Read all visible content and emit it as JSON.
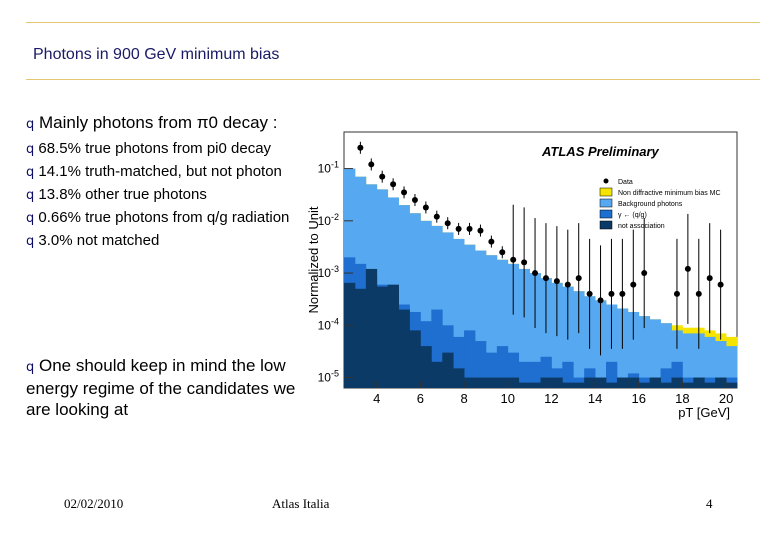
{
  "slide": {
    "title": "Photons in 900 GeV minimum bias",
    "bullet_mark": "q",
    "bullet1": {
      "text": "Mainly photons from π0 decay :",
      "subitems": [
        "68.5% true photons from pi0 decay",
        "14.1% truth-matched, but not photon",
        "13.8% other true photons",
        "0.66% true photons from q/g radiation",
        "3.0% not matched"
      ]
    },
    "bullet2": "One should keep in mind the low energy regime of the candidates we are looking at",
    "footer_date": "02/02/2010",
    "footer_center": "Atlas Italia",
    "footer_page": "4"
  },
  "chart_data": {
    "type": "area",
    "title": "ATLAS Preliminary",
    "ylabel": "Normalized to Unit",
    "xlabel": "pT [GeV]",
    "x_ticks": [
      4,
      6,
      8,
      10,
      12,
      14,
      16,
      18,
      20
    ],
    "y_ticks": [
      "10-1",
      "10-2",
      "10-3",
      "10-4",
      "10-5"
    ],
    "xlim": [
      2.5,
      20.5
    ],
    "ylim_log10": [
      -5.2,
      -0.3
    ],
    "y_scale": "log",
    "legend_position": "right",
    "legend": [
      "Data",
      "Non diffractive minimum bias MC",
      "Background photons",
      "γ ← (q/g)",
      "not association"
    ],
    "bin_edges": [
      2.5,
      3,
      3.5,
      4,
      4.5,
      5,
      5.5,
      6,
      6.5,
      7,
      7.5,
      8,
      8.5,
      9,
      9.5,
      10,
      10.5,
      11,
      11.5,
      12,
      12.5,
      13,
      13.5,
      14,
      14.5,
      15,
      15.5,
      16,
      16.5,
      17,
      17.5,
      18,
      18.5,
      19,
      19.5,
      20,
      20.5
    ],
    "series": [
      {
        "name": "Non diffractive minimum bias MC",
        "color": "#f5e400",
        "values": [
          0.1,
          0.07,
          0.05,
          0.04,
          0.028,
          0.02,
          0.014,
          0.01,
          0.008,
          0.006,
          0.0045,
          0.0035,
          0.0027,
          0.0022,
          0.0018,
          0.0015,
          0.0012,
          0.001,
          0.0008,
          0.00065,
          0.00055,
          0.00045,
          0.00036,
          0.0003,
          0.00025,
          0.00021,
          0.00018,
          0.00015,
          0.00013,
          0.00011,
          0.0001,
          9e-05,
          9e-05,
          8e-05,
          7e-05,
          6e-05
        ]
      },
      {
        "name": "Background photons",
        "color": "#56a9f0",
        "values": [
          0.1,
          0.07,
          0.05,
          0.04,
          0.028,
          0.02,
          0.014,
          0.01,
          0.008,
          0.006,
          0.0045,
          0.0035,
          0.0027,
          0.0022,
          0.0018,
          0.0015,
          0.0012,
          0.001,
          0.0008,
          0.00065,
          0.00055,
          0.00045,
          0.00036,
          0.0003,
          0.00025,
          0.00021,
          0.00018,
          0.00015,
          0.00013,
          0.00011,
          8e-05,
          7e-05,
          7e-05,
          6e-05,
          5e-05,
          4e-05
        ]
      },
      {
        "name": "γ ← (q/g)",
        "color": "#1f6fd0",
        "values": [
          0.002,
          0.0015,
          0.0009,
          0.0006,
          0.0004,
          0.00025,
          0.00018,
          0.00012,
          0.0002,
          0.0001,
          6e-05,
          8e-05,
          5e-05,
          3e-05,
          4e-05,
          3e-05,
          2e-05,
          2e-05,
          2.5e-05,
          1.5e-05,
          2e-05,
          1e-05,
          1.5e-05,
          1e-05,
          2e-05,
          1e-05,
          1.2e-05,
          1e-05,
          1e-05,
          1.5e-05,
          2e-05,
          1e-05,
          1e-05,
          1e-05,
          1e-05,
          1e-05
        ]
      },
      {
        "name": "not association",
        "color": "#0c3a66",
        "values": [
          0.00065,
          0.0005,
          0.0012,
          0.00055,
          0.0006,
          0.0002,
          8e-05,
          4e-05,
          2e-05,
          3e-05,
          1.5e-05,
          1e-05,
          1e-05,
          1e-05,
          1e-05,
          1e-05,
          8e-06,
          8e-06,
          1e-05,
          1e-05,
          8e-06,
          8e-06,
          1e-05,
          1e-05,
          8e-06,
          1e-05,
          1e-05,
          8e-06,
          1e-05,
          8e-06,
          1e-05,
          8e-06,
          1e-05,
          8e-06,
          1e-05,
          8e-06
        ]
      },
      {
        "name": "Data",
        "color": "#000000",
        "points": [
          {
            "x": 3.25,
            "y": 0.25
          },
          {
            "x": 3.75,
            "y": 0.12
          },
          {
            "x": 4.25,
            "y": 0.07
          },
          {
            "x": 4.75,
            "y": 0.05
          },
          {
            "x": 5.25,
            "y": 0.035
          },
          {
            "x": 5.75,
            "y": 0.025
          },
          {
            "x": 6.25,
            "y": 0.018
          },
          {
            "x": 6.75,
            "y": 0.012
          },
          {
            "x": 7.25,
            "y": 0.009
          },
          {
            "x": 7.75,
            "y": 0.007
          },
          {
            "x": 8.25,
            "y": 0.007
          },
          {
            "x": 8.75,
            "y": 0.0065
          },
          {
            "x": 9.25,
            "y": 0.004
          },
          {
            "x": 9.75,
            "y": 0.0025
          },
          {
            "x": 10.25,
            "y": 0.0018
          },
          {
            "x": 10.75,
            "y": 0.0016
          },
          {
            "x": 11.25,
            "y": 0.001
          },
          {
            "x": 11.75,
            "y": 0.0008
          },
          {
            "x": 12.25,
            "y": 0.0007
          },
          {
            "x": 12.75,
            "y": 0.0006
          },
          {
            "x": 13.25,
            "y": 0.0008
          },
          {
            "x": 13.75,
            "y": 0.0004
          },
          {
            "x": 14.25,
            "y": 0.0003
          },
          {
            "x": 14.75,
            "y": 0.0004
          },
          {
            "x": 15.25,
            "y": 0.0004
          },
          {
            "x": 15.75,
            "y": 0.0006
          },
          {
            "x": 16.25,
            "y": 0.001
          },
          {
            "x": 17.75,
            "y": 0.0004
          },
          {
            "x": 18.25,
            "y": 0.0012
          },
          {
            "x": 18.75,
            "y": 0.0004
          },
          {
            "x": 19.25,
            "y": 0.0008
          },
          {
            "x": 19.75,
            "y": 0.0006
          }
        ]
      }
    ]
  }
}
